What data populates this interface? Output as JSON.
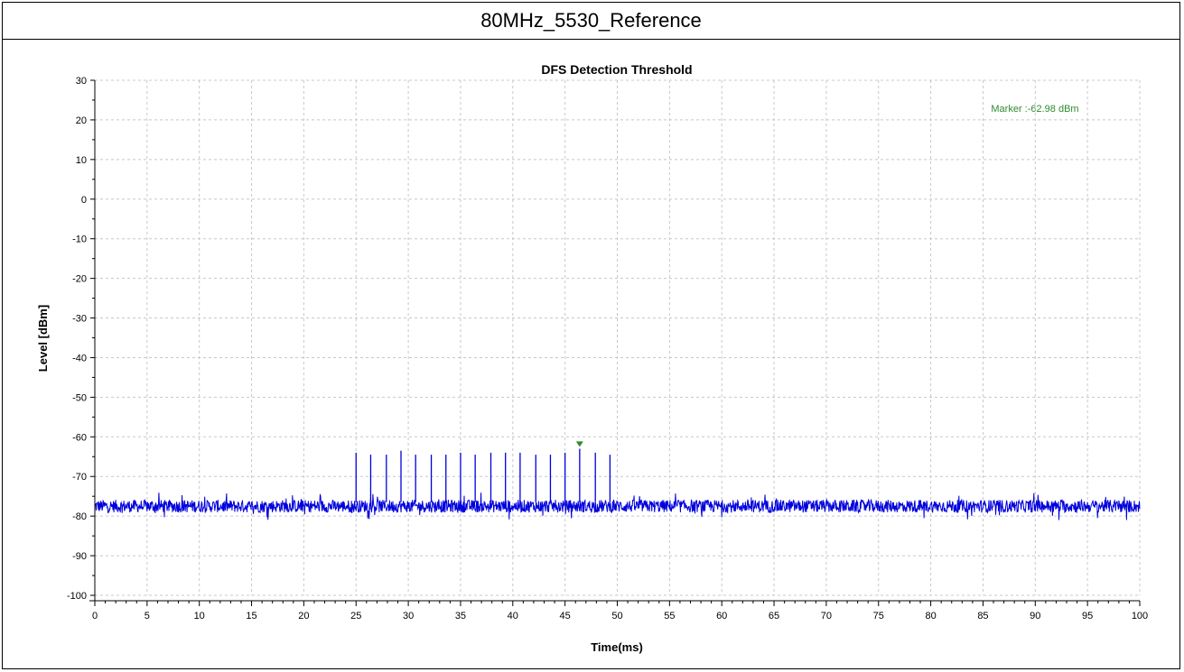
{
  "header": {
    "title": "80MHz_5530_Reference"
  },
  "colors": {
    "trace": "#0000dd",
    "marker": "#2e8b2e",
    "grid": "#c8c8c8"
  },
  "chart_data": {
    "type": "line",
    "title": "DFS Detection Threshold",
    "xlabel": "Time(ms)",
    "ylabel": "Level [dBm]",
    "xlim": [
      0,
      100
    ],
    "ylim": [
      -100,
      30
    ],
    "xticks": [
      0,
      5,
      10,
      15,
      20,
      25,
      30,
      35,
      40,
      45,
      50,
      55,
      60,
      65,
      70,
      75,
      80,
      85,
      90,
      95,
      100
    ],
    "yticks": [
      30,
      20,
      10,
      0,
      -10,
      -20,
      -30,
      -40,
      -50,
      -60,
      -70,
      -80,
      -90,
      -100
    ],
    "grid": true,
    "series": [
      {
        "noise_floor_dbm": -77.5,
        "noise_range_dbm": [
          -81,
          -74
        ],
        "pulses": [
          {
            "x": 25.0,
            "y": -64
          },
          {
            "x": 26.4,
            "y": -64.5
          },
          {
            "x": 27.9,
            "y": -64.5
          },
          {
            "x": 29.3,
            "y": -63.5
          },
          {
            "x": 30.7,
            "y": -64.5
          },
          {
            "x": 32.2,
            "y": -64.5
          },
          {
            "x": 33.6,
            "y": -64.5
          },
          {
            "x": 35.0,
            "y": -64
          },
          {
            "x": 36.4,
            "y": -64.5
          },
          {
            "x": 37.9,
            "y": -64
          },
          {
            "x": 39.3,
            "y": -64
          },
          {
            "x": 40.7,
            "y": -64
          },
          {
            "x": 42.2,
            "y": -64.5
          },
          {
            "x": 43.6,
            "y": -64.5
          },
          {
            "x": 45.0,
            "y": -64
          },
          {
            "x": 46.4,
            "y": -63
          },
          {
            "x": 47.9,
            "y": -64
          },
          {
            "x": 49.3,
            "y": -64.5
          }
        ]
      }
    ],
    "marker": {
      "x": 46.4,
      "y": -62.98,
      "label": "Marker :-62.98 dBm"
    }
  }
}
